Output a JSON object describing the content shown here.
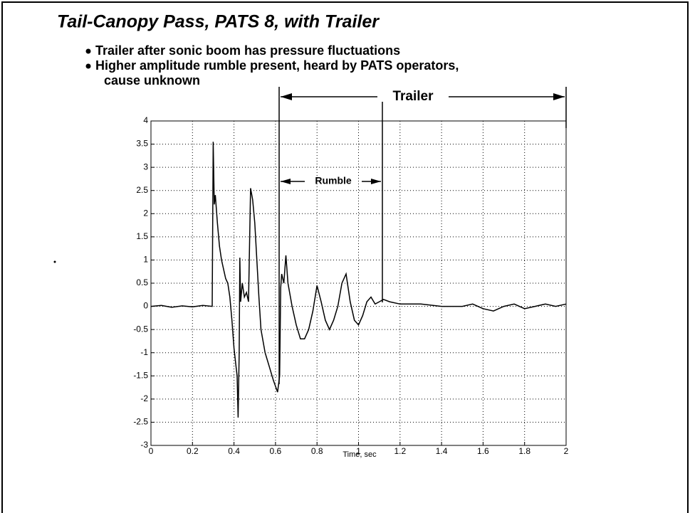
{
  "chart_data": {
    "type": "line",
    "title": "Tail-Canopy Pass, PATS 8, with Trailer",
    "bullets": [
      {
        "lines": [
          "Trailer after sonic boom has pressure fluctuations"
        ]
      },
      {
        "lines": [
          "Higher amplitude rumble present, heard by PATS operators,",
          "cause unknown"
        ]
      }
    ],
    "annotations": [
      "Trailer",
      "Rumble"
    ],
    "xlabel": "Time, sec",
    "xlim": [
      0,
      2
    ],
    "ylim": [
      -3,
      4
    ],
    "xticks": [
      0,
      0.2,
      0.4,
      0.6,
      0.8,
      1,
      1.2,
      1.4,
      1.6,
      1.8,
      2
    ],
    "yticks": [
      -3,
      -2.5,
      -2,
      -1.5,
      -1,
      -0.5,
      0,
      0.5,
      1,
      1.5,
      2,
      2.5,
      3,
      3.5,
      4
    ],
    "grid": true,
    "series": [
      {
        "color": "#000000",
        "x": [
          0,
          0.05,
          0.1,
          0.15,
          0.2,
          0.25,
          0.295,
          0.3,
          0.305,
          0.31,
          0.32,
          0.33,
          0.34,
          0.36,
          0.37,
          0.38,
          0.39,
          0.4,
          0.41,
          0.415,
          0.42,
          0.425,
          0.428,
          0.432,
          0.44,
          0.45,
          0.46,
          0.47,
          0.48,
          0.49,
          0.5,
          0.51,
          0.52,
          0.53,
          0.55,
          0.57,
          0.59,
          0.61,
          0.62,
          0.625,
          0.63,
          0.64,
          0.65,
          0.66,
          0.68,
          0.7,
          0.72,
          0.74,
          0.76,
          0.78,
          0.8,
          0.82,
          0.84,
          0.86,
          0.88,
          0.9,
          0.92,
          0.94,
          0.96,
          0.98,
          1,
          1.02,
          1.04,
          1.06,
          1.08,
          1.1,
          1.12,
          1.15,
          1.2,
          1.3,
          1.4,
          1.5,
          1.55,
          1.6,
          1.65,
          1.7,
          1.75,
          1.8,
          1.85,
          1.9,
          1.95,
          2
        ],
        "values": [
          0,
          0.02,
          -0.02,
          0.01,
          -0.01,
          0.02,
          0,
          3.55,
          2.2,
          2.4,
          1.8,
          1.3,
          1,
          0.6,
          0.5,
          0.2,
          -0.3,
          -0.9,
          -1.3,
          -1.5,
          -2.4,
          -1,
          1.05,
          0.1,
          0.5,
          0.2,
          0.3,
          0.1,
          2.55,
          2.3,
          1.8,
          1,
          0.2,
          -0.5,
          -1,
          -1.3,
          -1.6,
          -1.85,
          -1.5,
          0.4,
          0.7,
          0.5,
          1.1,
          0.5,
          0,
          -0.4,
          -0.7,
          -0.7,
          -0.5,
          -0.1,
          0.45,
          0.1,
          -0.3,
          -0.5,
          -0.3,
          0,
          0.5,
          0.7,
          0.1,
          -0.3,
          -0.4,
          -0.2,
          0.1,
          0.2,
          0.05,
          0.1,
          0.15,
          0.1,
          0.05,
          0.05,
          0,
          0,
          0.05,
          -0.05,
          -0.1,
          0,
          0.05,
          -0.05,
          0,
          0.05,
          0,
          0.05
        ]
      }
    ]
  }
}
